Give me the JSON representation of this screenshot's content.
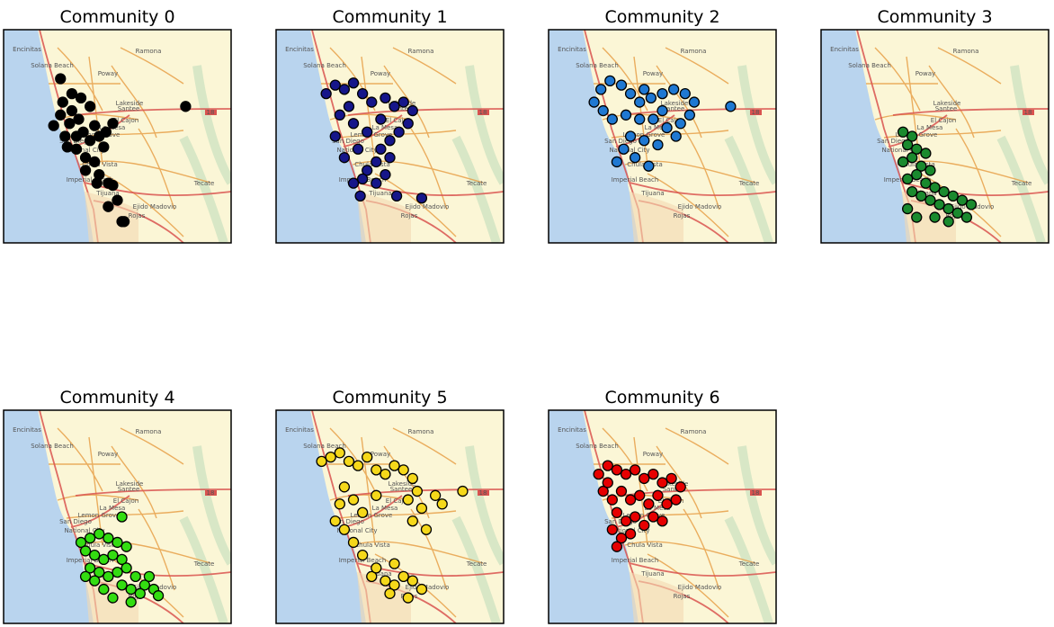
{
  "map": {
    "labels": [
      "Encinitas",
      "Solana Beach",
      "Poway",
      "Ramona",
      "Lakeside",
      "Santee",
      "El Cajon",
      "La Mesa",
      "Lemon Grove",
      "San Diego",
      "National City",
      "Chula Vista",
      "Imperial Beach",
      "Tijuana",
      "Ejido Madovio",
      "Rojas",
      "Tecate",
      "18"
    ]
  },
  "chart_data": [
    {
      "type": "scatter",
      "title": "Community 0",
      "color": "#000000",
      "xlim": [
        0,
        100
      ],
      "ylim": [
        0,
        100
      ],
      "x": [
        22,
        25,
        27,
        30,
        33,
        35,
        38,
        28,
        32,
        36,
        40,
        42,
        45,
        48,
        30,
        34,
        26,
        38,
        44,
        40,
        36,
        42,
        46,
        50,
        46,
        52,
        25,
        80,
        32,
        29,
        53,
        48,
        41
      ],
      "y": [
        55,
        60,
        50,
        62,
        58,
        52,
        48,
        45,
        44,
        40,
        55,
        50,
        52,
        56,
        70,
        68,
        66,
        64,
        45,
        38,
        34,
        32,
        28,
        20,
        17,
        10,
        77,
        64,
        50,
        56,
        10,
        27,
        28
      ]
    },
    {
      "type": "scatter",
      "title": "Community 1",
      "color": "#16168a",
      "xlim": [
        0,
        100
      ],
      "ylim": [
        0,
        100
      ],
      "x": [
        22,
        26,
        30,
        34,
        38,
        42,
        48,
        52,
        56,
        60,
        58,
        54,
        50,
        46,
        44,
        40,
        38,
        34,
        30,
        26,
        28,
        34,
        40,
        46,
        36,
        32,
        50,
        44,
        37,
        64,
        53,
        48
      ],
      "y": [
        70,
        74,
        72,
        75,
        70,
        66,
        68,
        64,
        66,
        62,
        56,
        52,
        48,
        44,
        38,
        34,
        30,
        28,
        40,
        50,
        60,
        56,
        52,
        58,
        44,
        64,
        40,
        28,
        22,
        21,
        22,
        32
      ]
    },
    {
      "type": "scatter",
      "title": "Community 2",
      "color": "#1f78d2",
      "xlim": [
        0,
        100
      ],
      "ylim": [
        0,
        100
      ],
      "x": [
        20,
        23,
        27,
        32,
        36,
        40,
        45,
        50,
        55,
        60,
        64,
        62,
        58,
        52,
        46,
        40,
        34,
        28,
        24,
        36,
        42,
        48,
        33,
        38,
        44,
        30,
        56,
        80,
        50,
        42
      ],
      "y": [
        66,
        72,
        76,
        74,
        70,
        66,
        68,
        70,
        72,
        70,
        66,
        60,
        56,
        54,
        58,
        58,
        60,
        58,
        62,
        50,
        48,
        46,
        44,
        40,
        36,
        38,
        50,
        64,
        62,
        72
      ]
    },
    {
      "type": "scatter",
      "title": "Community 3",
      "color": "#1a8a2e",
      "xlim": [
        0,
        100
      ],
      "ylim": [
        0,
        100
      ],
      "x": [
        36,
        40,
        38,
        42,
        46,
        40,
        36,
        44,
        48,
        42,
        38,
        46,
        50,
        54,
        58,
        62,
        66,
        60,
        56,
        52,
        48,
        44,
        40,
        38,
        42,
        56,
        64,
        50
      ],
      "y": [
        52,
        50,
        46,
        44,
        42,
        40,
        38,
        36,
        34,
        32,
        30,
        28,
        26,
        24,
        22,
        20,
        18,
        14,
        16,
        18,
        20,
        22,
        24,
        16,
        12,
        10,
        12,
        12
      ]
    },
    {
      "type": "scatter",
      "title": "Community 4",
      "color": "#33dd11",
      "xlim": [
        0,
        100
      ],
      "ylim": [
        0,
        100
      ],
      "x": [
        52,
        34,
        38,
        42,
        46,
        50,
        54,
        36,
        40,
        44,
        48,
        52,
        38,
        42,
        46,
        50,
        54,
        58,
        62,
        66,
        68,
        60,
        56,
        52,
        44,
        40,
        48,
        56,
        36,
        64
      ],
      "y": [
        50,
        38,
        40,
        42,
        40,
        38,
        36,
        34,
        32,
        30,
        32,
        30,
        26,
        24,
        22,
        24,
        26,
        22,
        18,
        16,
        13,
        14,
        16,
        18,
        16,
        20,
        12,
        10,
        22,
        22
      ]
    },
    {
      "type": "scatter",
      "title": "Community 5",
      "color": "#f5d81a",
      "xlim": [
        0,
        100
      ],
      "ylim": [
        0,
        100
      ],
      "x": [
        20,
        24,
        28,
        32,
        36,
        40,
        44,
        48,
        52,
        56,
        60,
        62,
        58,
        64,
        70,
        73,
        82,
        60,
        66,
        30,
        28,
        34,
        26,
        30,
        34,
        38,
        42,
        48,
        52,
        56,
        60,
        64,
        58,
        50,
        44,
        52,
        38,
        44
      ],
      "y": [
        76,
        78,
        80,
        76,
        74,
        78,
        72,
        70,
        74,
        72,
        68,
        62,
        58,
        54,
        60,
        56,
        62,
        48,
        44,
        64,
        56,
        58,
        48,
        44,
        38,
        32,
        22,
        20,
        18,
        22,
        20,
        16,
        12,
        14,
        26,
        28,
        52,
        60
      ]
    },
    {
      "type": "scatter",
      "title": "Community 6",
      "color": "#e60000",
      "xlim": [
        0,
        100
      ],
      "ylim": [
        0,
        100
      ],
      "x": [
        22,
        26,
        30,
        34,
        38,
        42,
        46,
        50,
        54,
        58,
        56,
        52,
        48,
        44,
        40,
        36,
        32,
        28,
        24,
        30,
        34,
        38,
        42,
        46,
        28,
        32,
        36,
        30,
        50,
        26
      ],
      "y": [
        70,
        74,
        72,
        70,
        72,
        68,
        70,
        66,
        68,
        64,
        58,
        56,
        60,
        56,
        60,
        58,
        62,
        58,
        62,
        52,
        48,
        50,
        46,
        50,
        44,
        40,
        42,
        36,
        48,
        66
      ]
    }
  ]
}
